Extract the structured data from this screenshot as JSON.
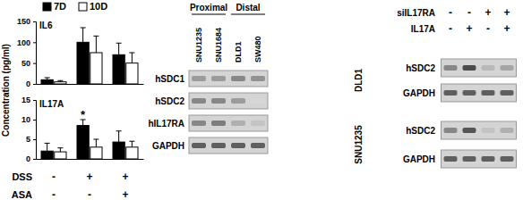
{
  "chart_data": [
    {
      "type": "bar",
      "title": "IL6",
      "ylabel": "Concentration (pg/ml)",
      "categories": [
        null,
        null,
        null
      ],
      "series": [
        {
          "name": "7D",
          "color": "#000000",
          "values": [
            10,
            100,
            70
          ],
          "errors": [
            5,
            35,
            28
          ]
        },
        {
          "name": "10D",
          "color": "#ffffff",
          "values": [
            5,
            75,
            50
          ],
          "errors": [
            3,
            40,
            25
          ]
        }
      ],
      "ylim": [
        0,
        150
      ],
      "yticks": [
        0,
        50,
        100,
        150
      ],
      "legend": "top"
    },
    {
      "type": "bar",
      "title": "IL17A",
      "categories": [
        null,
        null,
        null
      ],
      "series": [
        {
          "name": "7D",
          "color": "#000000",
          "values": [
            2,
            8.5,
            4.3
          ],
          "errors": [
            2,
            1.5,
            2.8
          ]
        },
        {
          "name": "10D",
          "color": "#ffffff",
          "values": [
            1.8,
            3,
            3
          ],
          "errors": [
            1,
            2,
            1.5
          ]
        }
      ],
      "ylim": [
        0,
        15
      ],
      "yticks": [
        0,
        5,
        10,
        15
      ],
      "annotations": [
        {
          "text": "*",
          "category": 1,
          "series": 0
        }
      ]
    }
  ],
  "conditions": {
    "rows": [
      {
        "label": "DSS",
        "values": [
          "-",
          "+",
          "+"
        ]
      },
      {
        "label": "ASA",
        "values": [
          "-",
          "-",
          "+"
        ]
      }
    ]
  },
  "gels": [
    {
      "headers": [
        {
          "text": "Proximal",
          "lanes": [
            0,
            1
          ]
        },
        {
          "text": "Distal",
          "lanes": [
            2,
            3
          ]
        }
      ],
      "lanes": [
        "SNU1235",
        "SNU1684",
        "DLD1",
        "SW480"
      ],
      "rows": [
        {
          "label": "hSDC1",
          "bands": [
            0.5,
            0.5,
            0.6,
            0.55
          ]
        },
        {
          "label": "hSDC2",
          "bands": [
            0.6,
            0.6,
            0.5,
            0.2
          ]
        },
        {
          "label": "hIL17RA",
          "bands": [
            0.6,
            0.65,
            0.4,
            0.3
          ]
        },
        {
          "label": "GAPDH",
          "bands": [
            0.8,
            0.8,
            0.8,
            0.8
          ]
        }
      ]
    },
    {
      "treatments": [
        {
          "label": "siIL17RA",
          "values": [
            "-",
            "-",
            "+",
            "+"
          ]
        },
        {
          "label": "IL17A",
          "values": [
            "-",
            "+",
            "-",
            "+"
          ]
        }
      ],
      "blocks": [
        {
          "label": "DLD1",
          "rows": [
            {
              "label": "hSDC2",
              "bands": [
                0.6,
                0.9,
                0.35,
                0.45
              ]
            },
            {
              "label": "GAPDH",
              "bands": [
                0.8,
                0.8,
                0.8,
                0.8
              ]
            }
          ]
        },
        {
          "label": "SNU1235",
          "rows": [
            {
              "label": "hSDC2",
              "bands": [
                0.6,
                0.85,
                0.3,
                0.4
              ]
            },
            {
              "label": "GAPDH",
              "bands": [
                0.8,
                0.8,
                0.8,
                0.8
              ]
            }
          ]
        }
      ]
    }
  ]
}
